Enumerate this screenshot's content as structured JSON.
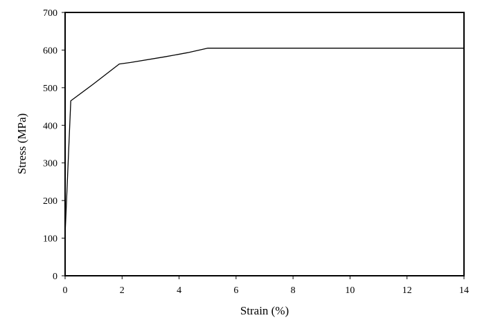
{
  "chart_data": {
    "type": "line",
    "title": "",
    "xlabel": "Strain (%)",
    "ylabel": "Stress (MPa)",
    "xlim": [
      0,
      14
    ],
    "ylim": [
      0,
      700
    ],
    "xticks": [
      0,
      2,
      4,
      6,
      8,
      10,
      12,
      14
    ],
    "yticks": [
      0,
      100,
      200,
      300,
      400,
      500,
      600,
      700
    ],
    "grid": false,
    "legend": "none",
    "line_color": "#000000",
    "series": [
      {
        "x": [
          0,
          0.2,
          1.0,
          1.9,
          2.3,
          3.5,
          4.3,
          5.0,
          14.0
        ],
        "y": [
          110,
          465,
          510,
          563,
          567,
          582,
          593,
          605,
          605
        ]
      }
    ]
  }
}
